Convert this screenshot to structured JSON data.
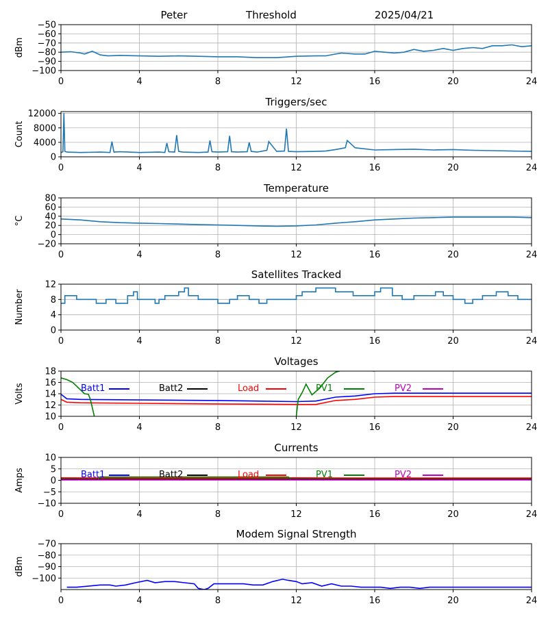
{
  "header": {
    "station": "Peter",
    "label": "Threshold",
    "date": "2025/04/21"
  },
  "chart_data": [
    {
      "id": "threshold",
      "type": "line",
      "title": "",
      "xlabel": "",
      "ylabel": "dBm",
      "xlim": [
        0,
        24
      ],
      "ylim": [
        -100,
        -50
      ],
      "xticks": [
        0,
        4,
        8,
        12,
        16,
        20,
        24
      ],
      "yticks": [
        -100,
        -90,
        -80,
        -70,
        -60,
        -50
      ],
      "grid": true,
      "series": [
        {
          "color": "#1f77b4",
          "x": [
            0,
            0.5,
            1,
            1.2,
            1.6,
            1.8,
            2,
            2.4,
            3,
            4,
            5,
            6,
            7,
            8,
            9,
            10,
            11,
            12,
            13,
            13.5,
            14,
            14.3,
            15,
            15.5,
            16,
            16.5,
            17,
            17.5,
            18,
            18.5,
            19,
            19.5,
            20,
            20.5,
            21,
            21.5,
            22,
            22.5,
            23,
            23.5,
            24
          ],
          "y": [
            -80,
            -79.5,
            -81,
            -82,
            -79,
            -81,
            -83,
            -84,
            -83.5,
            -84,
            -84.5,
            -84,
            -84.5,
            -85,
            -85,
            -86,
            -86,
            -84.5,
            -84,
            -84,
            -82,
            -81,
            -82,
            -82,
            -79,
            -80,
            -81,
            -80,
            -77,
            -79,
            -78,
            -76,
            -78,
            -76,
            -75,
            -76,
            -73,
            -73,
            -72,
            -74,
            -73
          ]
        }
      ]
    },
    {
      "id": "triggers",
      "type": "line",
      "title": "Triggers/sec",
      "xlabel": "",
      "ylabel": "Count",
      "xlim": [
        0,
        24
      ],
      "ylim": [
        0,
        12500
      ],
      "xticks": [
        0,
        4,
        8,
        12,
        16,
        20,
        24
      ],
      "yticks": [
        0,
        4000,
        8000,
        12000
      ],
      "grid": true,
      "series": [
        {
          "color": "#1f77b4",
          "x": [
            0,
            0.1,
            0.15,
            0.2,
            0.3,
            1,
            2,
            2.5,
            2.6,
            2.7,
            3,
            4,
            5,
            5.3,
            5.4,
            5.5,
            5.8,
            5.9,
            6.0,
            6.2,
            7,
            7.5,
            7.6,
            7.7,
            8,
            8.5,
            8.6,
            8.7,
            9,
            9.5,
            9.6,
            9.7,
            10,
            10.5,
            10.6,
            11,
            11.4,
            11.5,
            11.6,
            12,
            13,
            13.5,
            14,
            14.5,
            14.6,
            15,
            16,
            17,
            18,
            19,
            20,
            21,
            22,
            23,
            24
          ],
          "y": [
            1200,
            1400,
            12100,
            1500,
            1300,
            1200,
            1300,
            1200,
            4200,
            1300,
            1400,
            1200,
            1300,
            1200,
            3800,
            1400,
            1300,
            6000,
            1500,
            1300,
            1200,
            1300,
            4500,
            1400,
            1300,
            1400,
            5800,
            1400,
            1300,
            1400,
            4000,
            1500,
            1300,
            1800,
            4200,
            1500,
            1600,
            7800,
            1500,
            1400,
            1500,
            1600,
            2000,
            2500,
            4500,
            2500,
            1900,
            2000,
            2100,
            1900,
            2000,
            1800,
            1700,
            1600,
            1500
          ]
        }
      ]
    },
    {
      "id": "temperature",
      "type": "line",
      "title": "Temperature",
      "xlabel": "",
      "ylabel": "°C",
      "xlim": [
        0,
        24
      ],
      "ylim": [
        -20,
        80
      ],
      "xticks": [
        0,
        4,
        8,
        12,
        16,
        20,
        24
      ],
      "yticks": [
        -20,
        0,
        20,
        40,
        60,
        80
      ],
      "grid": true,
      "series": [
        {
          "color": "#1f77b4",
          "x": [
            0,
            1,
            2,
            3,
            4,
            5,
            6,
            7,
            8,
            9,
            10,
            11,
            12,
            13,
            14,
            15,
            16,
            17,
            18,
            19,
            20,
            21,
            22,
            23,
            24
          ],
          "y": [
            34,
            32,
            28,
            26,
            25,
            24,
            23,
            22,
            21,
            20,
            19,
            18,
            19,
            21,
            25,
            28,
            32,
            34,
            36,
            37,
            38,
            38,
            38,
            38,
            37
          ]
        }
      ]
    },
    {
      "id": "satellites",
      "type": "line",
      "title": "Satellites Tracked",
      "xlabel": "",
      "ylabel": "Number",
      "xlim": [
        0,
        24
      ],
      "ylim": [
        0,
        12
      ],
      "xticks": [
        0,
        4,
        8,
        12,
        16,
        20,
        24
      ],
      "yticks": [
        0,
        4,
        8,
        12
      ],
      "grid": true,
      "step": true,
      "series": [
        {
          "color": "#1f77b4",
          "x": [
            0,
            0.2,
            0.4,
            0.8,
            1.3,
            1.8,
            2.3,
            2.8,
            3.4,
            3.7,
            3.9,
            4.3,
            4.8,
            5.0,
            5.3,
            5.7,
            6.0,
            6.3,
            6.5,
            7.0,
            7.6,
            8.0,
            8.3,
            8.6,
            9.0,
            9.6,
            10.1,
            10.5,
            11.0,
            11.6,
            12.0,
            12.3,
            13.0,
            14.0,
            14.3,
            14.9,
            15.5,
            16.0,
            16.3,
            16.9,
            17.4,
            18.0,
            18.6,
            19.1,
            19.5,
            20.0,
            20.6,
            21.0,
            21.5,
            22.2,
            22.8,
            23.3,
            24
          ],
          "y": [
            7,
            9,
            9,
            8,
            8,
            7,
            8,
            7,
            9,
            10,
            8,
            8,
            7,
            8,
            9,
            9,
            10,
            11,
            9,
            8,
            8,
            7,
            7,
            8,
            9,
            8,
            7,
            8,
            8,
            8,
            9,
            10,
            11,
            10,
            10,
            9,
            9,
            10,
            11,
            9,
            8,
            9,
            9,
            10,
            9,
            8,
            7,
            8,
            9,
            10,
            9,
            8,
            8
          ]
        }
      ]
    },
    {
      "id": "voltages",
      "type": "line",
      "title": "Voltages",
      "xlabel": "",
      "ylabel": "Volts",
      "xlim": [
        0,
        24
      ],
      "ylim": [
        10,
        18
      ],
      "xticks": [
        0,
        4,
        8,
        12,
        16,
        20,
        24
      ],
      "yticks": [
        10,
        12,
        14,
        16,
        18
      ],
      "grid": true,
      "legend": "top",
      "series": [
        {
          "name": "Batt1",
          "color": "#0000ff",
          "x": [
            0,
            0.3,
            1,
            4,
            8,
            12,
            13,
            14,
            15,
            16,
            17,
            20,
            24
          ],
          "y": [
            13.9,
            13.1,
            13.0,
            12.9,
            12.8,
            12.6,
            12.7,
            13.4,
            13.6,
            14.0,
            14.1,
            14.1,
            14.1
          ]
        },
        {
          "name": "Batt2",
          "color": "#000000",
          "x": [],
          "y": []
        },
        {
          "name": "Load",
          "color": "#ff0000",
          "x": [
            0,
            0.3,
            1,
            4,
            8,
            12,
            13,
            14,
            15,
            16,
            17,
            20,
            24
          ],
          "y": [
            13.0,
            12.5,
            12.4,
            12.3,
            12.2,
            12.1,
            12.1,
            12.8,
            13.0,
            13.4,
            13.5,
            13.5,
            13.5
          ]
        },
        {
          "name": "PV1",
          "color": "#008000",
          "x": [
            0,
            0.3,
            0.6,
            0.9,
            1.2,
            1.4,
            1.5,
            1.6,
            1.7,
            null,
            12.0,
            12.1,
            12.3,
            12.5,
            12.8,
            13.2,
            13.6,
            14.0,
            14.5,
            15.0,
            16.0
          ],
          "y": [
            16.8,
            16.5,
            16.0,
            15.0,
            14.0,
            13.9,
            13.0,
            11.5,
            10.0,
            null,
            10.0,
            13.0,
            14.2,
            15.7,
            13.8,
            15.0,
            16.8,
            17.8,
            18.3,
            18.2,
            18.0
          ]
        },
        {
          "name": "PV2",
          "color": "#c000c0",
          "x": [],
          "y": []
        }
      ]
    },
    {
      "id": "currents",
      "type": "line",
      "title": "Currents",
      "xlabel": "",
      "ylabel": "Amps",
      "xlim": [
        0,
        24
      ],
      "ylim": [
        -10,
        10
      ],
      "xticks": [
        0,
        4,
        8,
        12,
        16,
        20,
        24
      ],
      "yticks": [
        -10,
        -5,
        0,
        5,
        10
      ],
      "grid": true,
      "legend": "top",
      "series": [
        {
          "name": "Batt1",
          "color": "#0000ff",
          "x": [
            0,
            24
          ],
          "y": [
            0.4,
            0.4
          ]
        },
        {
          "name": "Batt2",
          "color": "#000000",
          "x": [
            0,
            24
          ],
          "y": [
            0.6,
            0.6
          ]
        },
        {
          "name": "Load",
          "color": "#ff0000",
          "x": [
            0,
            4,
            8,
            12,
            16,
            20,
            24
          ],
          "y": [
            1.1,
            1.0,
            1.0,
            1.1,
            1.0,
            1.0,
            1.0
          ]
        },
        {
          "name": "PV1",
          "color": "#008000",
          "x": [
            1.9,
            2.0,
            11.6,
            11.7
          ],
          "y": [
            0.5,
            1.5,
            1.5,
            0.5
          ]
        },
        {
          "name": "PV2",
          "color": "#c000c0",
          "x": [
            0,
            24
          ],
          "y": [
            0.2,
            0.2
          ]
        }
      ]
    },
    {
      "id": "modem",
      "type": "line",
      "title": "Modem Signal Strength",
      "xlabel": "",
      "ylabel": "dBm",
      "xlim": [
        0,
        24
      ],
      "ylim": [
        -110,
        -70
      ],
      "xticks": [
        0,
        4,
        8,
        12,
        16,
        20,
        24
      ],
      "yticks": [
        -100,
        -90,
        -80,
        -70
      ],
      "grid": true,
      "series": [
        {
          "color": "#0000ff",
          "x": [
            0.3,
            0.8,
            2.0,
            2.5,
            2.8,
            3.3,
            3.8,
            4.4,
            4.8,
            5.3,
            5.8,
            6.3,
            6.8,
            7.0,
            7.3,
            7.5,
            7.8,
            8.3,
            9.3,
            9.8,
            10.3,
            10.8,
            11.3,
            11.6,
            12.0,
            12.3,
            12.8,
            13.3,
            13.8,
            14.3,
            14.8,
            15.3,
            16.3,
            16.8,
            17.3,
            17.8,
            18.3,
            18.8,
            19.3,
            24
          ],
          "y": [
            -108,
            -108,
            -106,
            -106,
            -107,
            -106,
            -104,
            -102,
            -104,
            -103,
            -103,
            -104,
            -105,
            -109,
            -110,
            -109,
            -105,
            -105,
            -105,
            -106,
            -106,
            -103,
            -101,
            -102,
            -103,
            -105,
            -104,
            -107,
            -105,
            -107,
            -107,
            -108,
            -108,
            -109,
            -108,
            -108,
            -109,
            -108,
            -108,
            -108
          ]
        }
      ]
    }
  ]
}
